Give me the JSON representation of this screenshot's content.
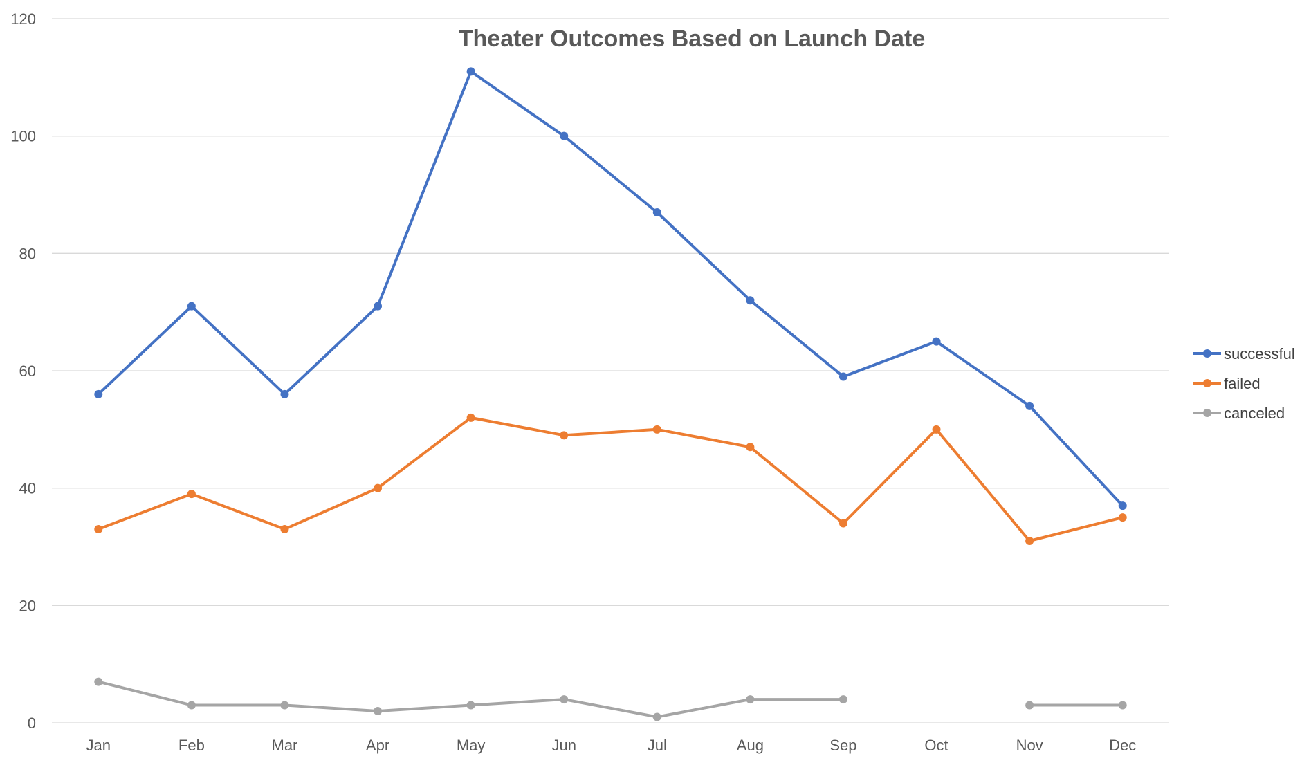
{
  "chart_data": {
    "type": "line",
    "title": "Theater Outcomes Based on Launch Date",
    "xlabel": "",
    "ylabel": "",
    "categories": [
      "Jan",
      "Feb",
      "Mar",
      "Apr",
      "May",
      "Jun",
      "Jul",
      "Aug",
      "Sep",
      "Oct",
      "Nov",
      "Dec"
    ],
    "ylim": [
      0,
      120
    ],
    "yticks": [
      "0",
      "20",
      "40",
      "60",
      "80",
      "100",
      "120"
    ],
    "grid": true,
    "legend_position": "right",
    "series": [
      {
        "name": "successful",
        "color": "#4472c4",
        "values": [
          56,
          71,
          56,
          71,
          111,
          100,
          87,
          72,
          59,
          65,
          54,
          37
        ]
      },
      {
        "name": "failed",
        "color": "#ed7d31",
        "values": [
          33,
          39,
          33,
          40,
          52,
          49,
          50,
          47,
          34,
          50,
          31,
          35
        ]
      },
      {
        "name": "canceled",
        "color": "#a5a5a5",
        "values": [
          7,
          3,
          3,
          2,
          3,
          4,
          1,
          4,
          4,
          null,
          3,
          3
        ]
      }
    ]
  }
}
